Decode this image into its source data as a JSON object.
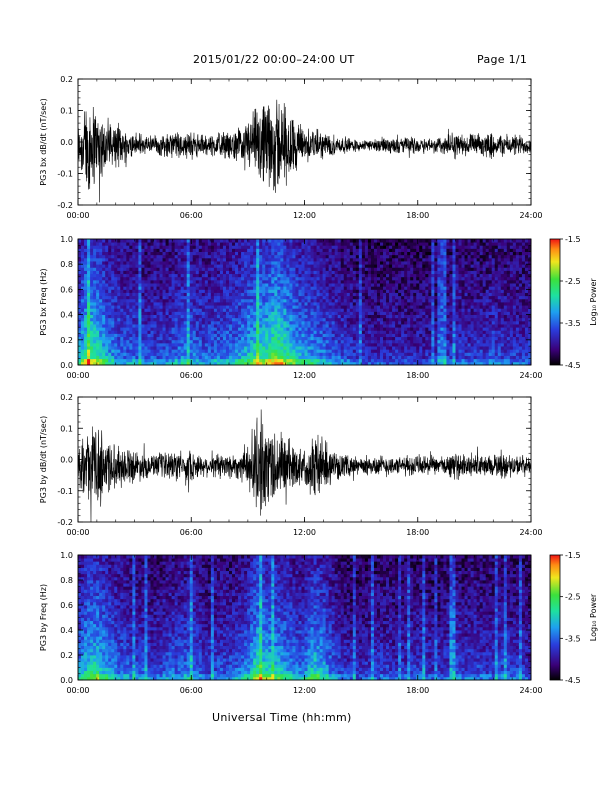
{
  "header": {
    "title": "2015/01/22  00:00–24:00 UT",
    "page": "Page 1/1"
  },
  "x_axis_label": "Universal Time (hh:mm)",
  "colors": {
    "trace": "#000000",
    "frame": "#000000",
    "background": "#ffffff"
  },
  "chart_data": [
    {
      "type": "line",
      "ylabel": "PG3 bx dB/dt (nT/sec)",
      "xlim": [
        0,
        24
      ],
      "ylim": [
        -0.2,
        0.2
      ],
      "x_ticks": [
        "00:00",
        "06:00",
        "12:00",
        "18:00",
        "24:00"
      ],
      "y_ticks": [
        "0.2",
        "0.1",
        "0.0",
        "-0.1",
        "-0.2"
      ],
      "series": [
        {
          "baseline": -0.01,
          "x": [
            0.0,
            0.5,
            1.0,
            1.5,
            2.0,
            2.5,
            3.0,
            3.5,
            4.0,
            4.5,
            5.0,
            5.5,
            6.0,
            6.5,
            7.0,
            7.5,
            8.0,
            8.5,
            9.0,
            9.5,
            10.0,
            10.5,
            11.0,
            11.5,
            12.0,
            12.5,
            13.0,
            13.5,
            14.0,
            14.5,
            15.0,
            15.5,
            16.0,
            16.5,
            17.0,
            17.5,
            18.0,
            18.5,
            19.0,
            19.5,
            20.0,
            20.5,
            21.0,
            21.5,
            22.0,
            22.5,
            23.0,
            23.5,
            24.0
          ],
          "amplitude": [
            0.08,
            0.2,
            0.14,
            0.1,
            0.08,
            0.06,
            0.05,
            0.04,
            0.04,
            0.04,
            0.05,
            0.05,
            0.05,
            0.04,
            0.04,
            0.05,
            0.05,
            0.06,
            0.1,
            0.14,
            0.16,
            0.2,
            0.16,
            0.1,
            0.07,
            0.06,
            0.05,
            0.04,
            0.03,
            0.03,
            0.02,
            0.02,
            0.03,
            0.03,
            0.03,
            0.03,
            0.03,
            0.03,
            0.03,
            0.04,
            0.05,
            0.04,
            0.04,
            0.04,
            0.05,
            0.04,
            0.04,
            0.04,
            0.03
          ]
        }
      ]
    },
    {
      "type": "heatmap",
      "ylabel": "PG3 bx Freq (Hz)",
      "xlim": [
        0,
        24
      ],
      "ylim": [
        0.0,
        1.0
      ],
      "x_ticks": [
        "00:00",
        "06:00",
        "12:00",
        "18:00",
        "24:00"
      ],
      "y_ticks": [
        "1.0",
        "0.8",
        "0.6",
        "0.4",
        "0.2",
        "0.0"
      ],
      "colorbar": {
        "label": "Log₁₀ Power",
        "range": [
          -4.5,
          -1.5
        ],
        "ticks": [
          "-1.5",
          "-2.5",
          "-3.5",
          "-4.5"
        ]
      },
      "activity": [
        0.55,
        0.85,
        0.8,
        0.6,
        0.5,
        0.45,
        0.45,
        0.4,
        0.4,
        0.4,
        0.45,
        0.5,
        0.5,
        0.45,
        0.45,
        0.5,
        0.5,
        0.55,
        0.65,
        0.75,
        0.8,
        0.9,
        0.8,
        0.65,
        0.6,
        0.55,
        0.5,
        0.45,
        0.4,
        0.35,
        0.3,
        0.3,
        0.3,
        0.3,
        0.3,
        0.3,
        0.3,
        0.3,
        0.3,
        0.35,
        0.35,
        0.35,
        0.35,
        0.35,
        0.4,
        0.35,
        0.35,
        0.35,
        0.35
      ]
    },
    {
      "type": "line",
      "ylabel": "PG3 by dB/dt (nT/sec)",
      "xlim": [
        0,
        24
      ],
      "ylim": [
        -0.2,
        0.2
      ],
      "x_ticks": [
        "00:00",
        "06:00",
        "12:00",
        "18:00",
        "24:00"
      ],
      "y_ticks": [
        "0.2",
        "0.1",
        "0.0",
        "-0.1",
        "-0.2"
      ],
      "series": [
        {
          "baseline": -0.02,
          "x": [
            0.0,
            0.5,
            1.0,
            1.5,
            2.0,
            2.5,
            3.0,
            3.5,
            4.0,
            4.5,
            5.0,
            5.5,
            6.0,
            6.5,
            7.0,
            7.5,
            8.0,
            8.5,
            9.0,
            9.5,
            10.0,
            10.5,
            11.0,
            11.5,
            12.0,
            12.5,
            13.0,
            13.5,
            14.0,
            14.5,
            15.0,
            15.5,
            16.0,
            16.5,
            17.0,
            17.5,
            18.0,
            18.5,
            19.0,
            19.5,
            20.0,
            20.5,
            21.0,
            21.5,
            22.0,
            22.5,
            23.0,
            23.5,
            24.0
          ],
          "amplitude": [
            0.07,
            0.12,
            0.16,
            0.12,
            0.08,
            0.07,
            0.06,
            0.05,
            0.04,
            0.05,
            0.06,
            0.05,
            0.06,
            0.04,
            0.04,
            0.05,
            0.05,
            0.05,
            0.08,
            0.2,
            0.16,
            0.14,
            0.12,
            0.08,
            0.06,
            0.14,
            0.1,
            0.06,
            0.04,
            0.04,
            0.03,
            0.04,
            0.04,
            0.04,
            0.03,
            0.04,
            0.04,
            0.04,
            0.03,
            0.04,
            0.05,
            0.04,
            0.05,
            0.04,
            0.04,
            0.05,
            0.04,
            0.04,
            0.03
          ]
        }
      ]
    },
    {
      "type": "heatmap",
      "ylabel": "PG3 by Freq (Hz)",
      "xlim": [
        0,
        24
      ],
      "ylim": [
        0.0,
        1.0
      ],
      "x_ticks": [
        "00:00",
        "06:00",
        "12:00",
        "18:00",
        "24:00"
      ],
      "y_ticks": [
        "1.0",
        "0.8",
        "0.6",
        "0.4",
        "0.2",
        "0.0"
      ],
      "colorbar": {
        "label": "Log₁₀ Power",
        "range": [
          -4.5,
          -1.5
        ],
        "ticks": [
          "-1.5",
          "-2.5",
          "-3.5",
          "-4.5"
        ]
      },
      "activity": [
        0.5,
        0.7,
        0.75,
        0.6,
        0.5,
        0.45,
        0.4,
        0.4,
        0.35,
        0.4,
        0.45,
        0.45,
        0.5,
        0.4,
        0.35,
        0.4,
        0.4,
        0.45,
        0.55,
        0.8,
        0.7,
        0.65,
        0.6,
        0.5,
        0.5,
        0.7,
        0.6,
        0.45,
        0.35,
        0.3,
        0.3,
        0.35,
        0.35,
        0.35,
        0.3,
        0.35,
        0.35,
        0.35,
        0.3,
        0.35,
        0.4,
        0.35,
        0.4,
        0.35,
        0.35,
        0.4,
        0.35,
        0.35,
        0.3
      ]
    }
  ]
}
